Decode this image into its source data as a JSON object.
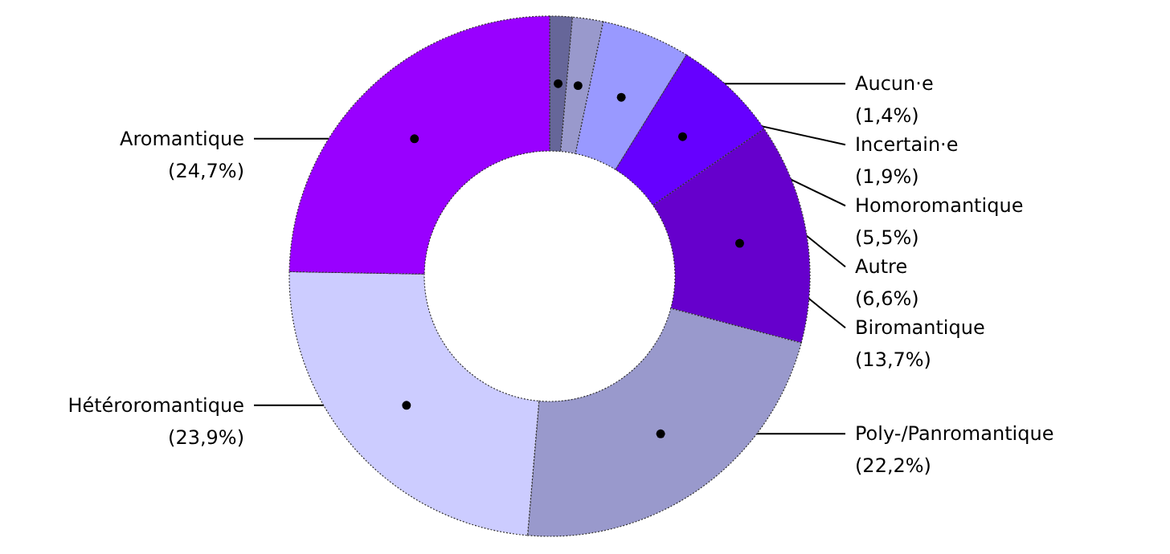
{
  "chart_data": {
    "type": "donut",
    "categories": [
      "Aucun·e",
      "Incertain·e",
      "Homoromantique",
      "Autre",
      "Biromantique",
      "Poly-/Panromantique",
      "Hétéroromantique",
      "Aromantique"
    ],
    "values": [
      1.4,
      1.9,
      5.5,
      6.6,
      13.7,
      22.2,
      23.9,
      24.7
    ],
    "value_labels": [
      "(1,4%)",
      "(1,9%)",
      "(5,5%)",
      "(6,6%)",
      "(13,7%)",
      "(22,2%)",
      "(23,9%)",
      "(24,7%)"
    ],
    "colors": [
      "#666699",
      "#9999cc",
      "#9999ff",
      "#6600ff",
      "#6600cc",
      "#9999cc",
      "#ccccff",
      "#9900ff"
    ]
  }
}
